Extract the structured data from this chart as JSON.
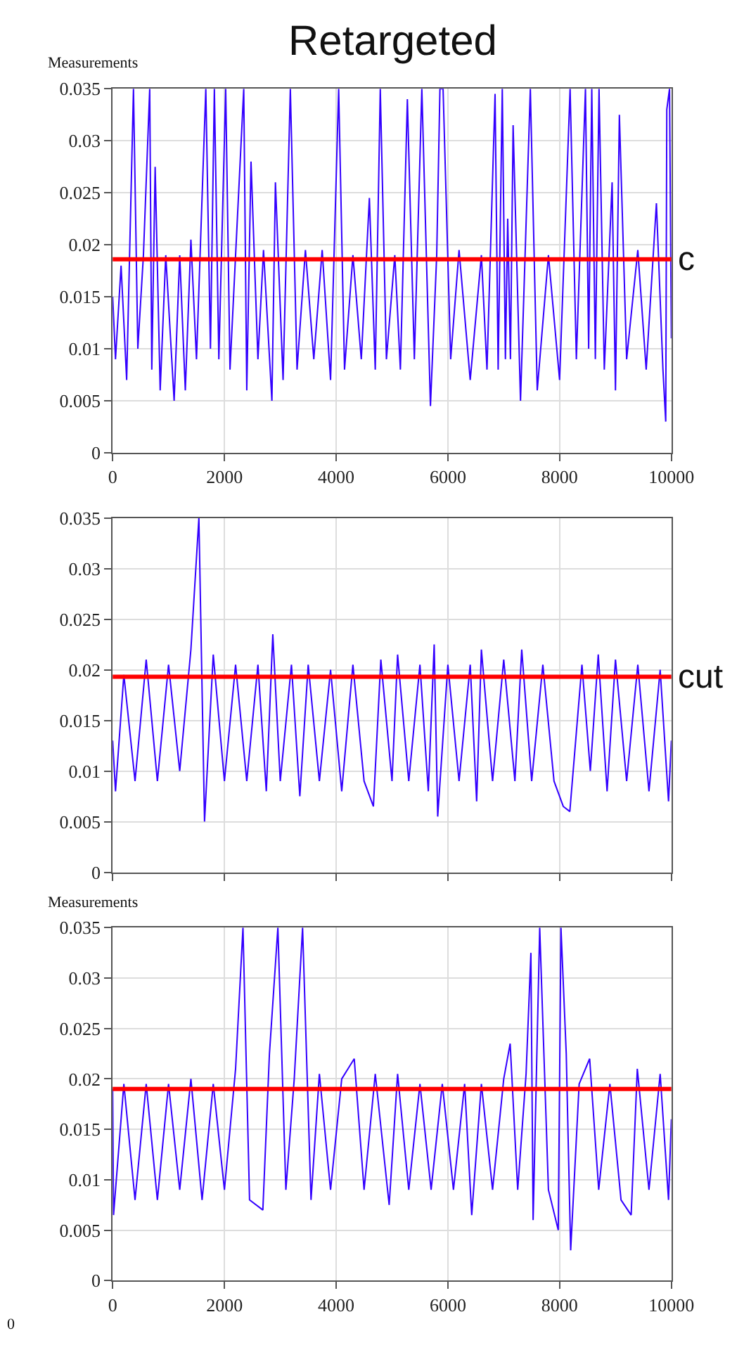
{
  "chart_data": [
    {
      "type": "line",
      "title": "Retargeted",
      "ylabel": "Measurements",
      "xlim": [
        0,
        10000
      ],
      "xticks": [
        0,
        2000,
        4000,
        6000,
        8000,
        10000
      ],
      "ylim": [
        0,
        0.035
      ],
      "yticks": [
        0,
        0.005,
        0.01,
        0.015,
        0.02,
        0.025,
        0.03,
        0.035
      ],
      "grid": true,
      "marker": "none",
      "line_style": "solid",
      "ref_lines": [
        {
          "axis": "y",
          "value": 0.0186,
          "label": "c",
          "color": "#ff0000"
        }
      ],
      "series": [
        {
          "color": "#3300ff",
          "x": [
            0,
            50,
            150,
            250,
            372,
            450,
            550,
            663,
            700,
            760,
            850,
            950,
            1100,
            1200,
            1300,
            1400,
            1500,
            1667,
            1750,
            1820,
            1900,
            2023,
            2100,
            2200,
            2346,
            2400,
            2476,
            2600,
            2700,
            2850,
            2913,
            3050,
            3180,
            3300,
            3450,
            3600,
            3750,
            3900,
            4045,
            4150,
            4300,
            4450,
            4595,
            4700,
            4790,
            4900,
            5050,
            5150,
            5275,
            5400,
            5534,
            5688,
            5800,
            5858,
            5914,
            6050,
            6200,
            6400,
            6600,
            6700,
            6845,
            6900,
            6974,
            7030,
            7071,
            7120,
            7168,
            7300,
            7476,
            7600,
            7800,
            8000,
            8188,
            8300,
            8463,
            8520,
            8576,
            8640,
            8706,
            8800,
            8940,
            9000,
            9070,
            9200,
            9400,
            9550,
            9733,
            9850,
            9900,
            9919,
            9968,
            10000
          ],
          "values": [
            0.015,
            0.009,
            0.018,
            0.007,
            0.035,
            0.01,
            0.019,
            0.035,
            0.008,
            0.0275,
            0.006,
            0.019,
            0.005,
            0.019,
            0.006,
            0.0205,
            0.009,
            0.035,
            0.01,
            0.035,
            0.009,
            0.035,
            0.008,
            0.019,
            0.035,
            0.006,
            0.028,
            0.009,
            0.0195,
            0.005,
            0.026,
            0.007,
            0.035,
            0.008,
            0.0195,
            0.009,
            0.0195,
            0.007,
            0.035,
            0.008,
            0.019,
            0.009,
            0.0245,
            0.008,
            0.035,
            0.009,
            0.019,
            0.008,
            0.034,
            0.009,
            0.035,
            0.0045,
            0.019,
            0.035,
            0.035,
            0.009,
            0.0195,
            0.007,
            0.019,
            0.008,
            0.0345,
            0.008,
            0.035,
            0.009,
            0.0225,
            0.009,
            0.0315,
            0.005,
            0.035,
            0.006,
            0.019,
            0.007,
            0.035,
            0.009,
            0.035,
            0.01,
            0.035,
            0.009,
            0.035,
            0.008,
            0.026,
            0.006,
            0.0325,
            0.009,
            0.0195,
            0.008,
            0.024,
            0.008,
            0.003,
            0.033,
            0.035,
            0.011
          ]
        }
      ]
    },
    {
      "type": "line",
      "xlim": [
        0,
        10000
      ],
      "xticks": [
        0,
        2000,
        4000,
        6000,
        8000,
        10000
      ],
      "ylim": [
        0,
        0.035
      ],
      "yticks": [
        0,
        0.005,
        0.01,
        0.015,
        0.02,
        0.025,
        0.03,
        0.035
      ],
      "grid": true,
      "marker": "none",
      "line_style": "solid",
      "tick_labels": "y",
      "ref_lines": [
        {
          "axis": "y",
          "value": 0.0193,
          "label": "cut",
          "color": "#ff0000"
        }
      ],
      "series": [
        {
          "color": "#3300ff",
          "x": [
            0,
            50,
            200,
            400,
            600,
            800,
            1000,
            1200,
            1400,
            1543,
            1644,
            1800,
            2000,
            2200,
            2400,
            2600,
            2750,
            2866,
            3000,
            3200,
            3350,
            3500,
            3700,
            3900,
            4100,
            4300,
            4500,
            4667,
            4800,
            5000,
            5100,
            5300,
            5500,
            5650,
            5755,
            5818,
            6000,
            6200,
            6400,
            6515,
            6600,
            6800,
            7000,
            7200,
            7322,
            7500,
            7700,
            7900,
            8066,
            8183,
            8400,
            8550,
            8692,
            8850,
            9000,
            9200,
            9400,
            9600,
            9800,
            9950,
            10000
          ],
          "values": [
            0.013,
            0.008,
            0.0195,
            0.009,
            0.021,
            0.009,
            0.0205,
            0.01,
            0.022,
            0.035,
            0.005,
            0.0215,
            0.009,
            0.0205,
            0.009,
            0.0205,
            0.008,
            0.0235,
            0.009,
            0.0205,
            0.0075,
            0.0205,
            0.009,
            0.02,
            0.008,
            0.0205,
            0.009,
            0.0065,
            0.021,
            0.009,
            0.0215,
            0.009,
            0.0205,
            0.008,
            0.0225,
            0.0055,
            0.0205,
            0.009,
            0.0205,
            0.007,
            0.022,
            0.009,
            0.021,
            0.009,
            0.022,
            0.009,
            0.0205,
            0.009,
            0.0065,
            0.006,
            0.0205,
            0.01,
            0.0215,
            0.008,
            0.021,
            0.009,
            0.0205,
            0.008,
            0.02,
            0.007,
            0.013
          ]
        }
      ]
    },
    {
      "type": "line",
      "ylabel": "Measurements",
      "xlim": [
        0,
        10000
      ],
      "xticks": [
        0,
        2000,
        4000,
        6000,
        8000,
        10000
      ],
      "ylim": [
        0,
        0.035
      ],
      "yticks": [
        0,
        0.005,
        0.01,
        0.015,
        0.02,
        0.025,
        0.03,
        0.035
      ],
      "grid": true,
      "marker": "none",
      "line_style": "solid",
      "ref_lines": [
        {
          "axis": "y",
          "value": 0.019,
          "color": "#ff0000"
        }
      ],
      "annotations": [
        "0"
      ],
      "series": [
        {
          "color": "#3300ff",
          "x": [
            0,
            15,
            200,
            400,
            600,
            800,
            1000,
            1200,
            1400,
            1600,
            1800,
            2000,
            2200,
            2332,
            2450,
            2688,
            2806,
            2957,
            3100,
            3250,
            3399,
            3550,
            3700,
            3900,
            4100,
            4324,
            4500,
            4700,
            4949,
            5100,
            5300,
            5500,
            5700,
            5900,
            6100,
            6300,
            6427,
            6600,
            6800,
            7000,
            7115,
            7250,
            7400,
            7486,
            7526,
            7644,
            7800,
            7976,
            8024,
            8119,
            8198,
            8350,
            8538,
            8700,
            8900,
            9100,
            9281,
            9391,
            9600,
            9800,
            9950,
            10000
          ],
          "values": [
            0.019,
            0.0065,
            0.0195,
            0.008,
            0.0195,
            0.008,
            0.0195,
            0.009,
            0.02,
            0.008,
            0.0195,
            0.009,
            0.021,
            0.035,
            0.008,
            0.007,
            0.0225,
            0.035,
            0.009,
            0.02,
            0.035,
            0.008,
            0.0205,
            0.009,
            0.02,
            0.022,
            0.009,
            0.0205,
            0.0075,
            0.0205,
            0.009,
            0.0195,
            0.009,
            0.0195,
            0.009,
            0.0195,
            0.0065,
            0.0195,
            0.009,
            0.02,
            0.0235,
            0.009,
            0.0205,
            0.0325,
            0.006,
            0.035,
            0.009,
            0.005,
            0.035,
            0.0225,
            0.003,
            0.0195,
            0.022,
            0.009,
            0.0195,
            0.008,
            0.0065,
            0.021,
            0.009,
            0.0205,
            0.008,
            0.016
          ]
        }
      ]
    }
  ]
}
